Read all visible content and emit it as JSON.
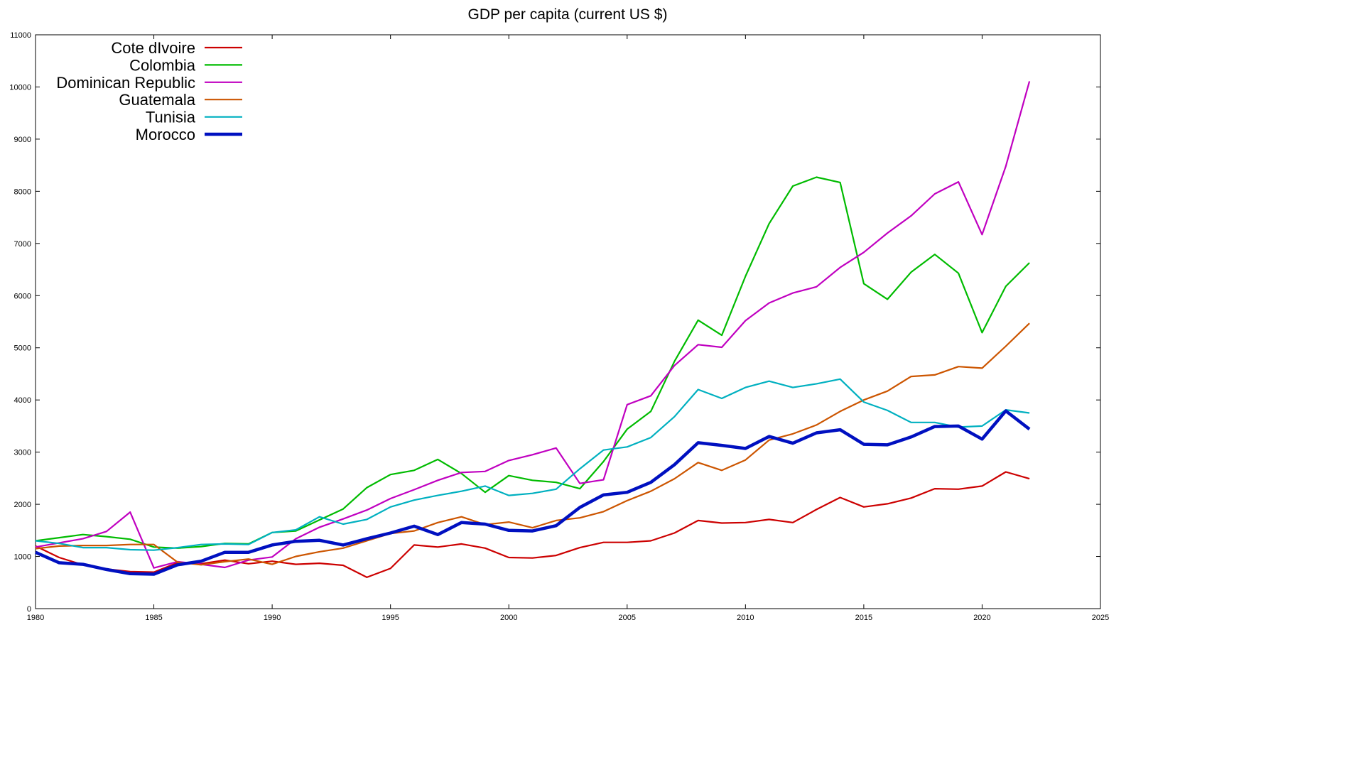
{
  "chart_data": {
    "type": "line",
    "title": "GDP per capita (current US $)",
    "xlabel": "",
    "ylabel": "",
    "xlim": [
      1980,
      2025
    ],
    "ylim": [
      0,
      11000
    ],
    "x_ticks": [
      1980,
      1985,
      1990,
      1995,
      2000,
      2005,
      2010,
      2015,
      2020,
      2025
    ],
    "y_ticks": [
      0,
      1000,
      2000,
      3000,
      4000,
      5000,
      6000,
      7000,
      8000,
      9000,
      10000,
      11000
    ],
    "grid": false,
    "legend_position": "top-left",
    "x": [
      1980,
      1981,
      1982,
      1983,
      1984,
      1985,
      1986,
      1987,
      1988,
      1989,
      1990,
      1991,
      1992,
      1993,
      1994,
      1995,
      1996,
      1997,
      1998,
      1999,
      2000,
      2001,
      2002,
      2003,
      2004,
      2005,
      2006,
      2007,
      2008,
      2009,
      2010,
      2011,
      2012,
      2013,
      2014,
      2015,
      2016,
      2017,
      2018,
      2019,
      2020,
      2021,
      2022
    ],
    "series": [
      {
        "name": "Cote dIvoire",
        "color": "#cc0000",
        "values": [
          1200,
          980,
          840,
          760,
          710,
          700,
          880,
          860,
          930,
          860,
          910,
          850,
          870,
          830,
          600,
          770,
          1220,
          1180,
          1240,
          1160,
          980,
          970,
          1020,
          1170,
          1270,
          1270,
          1300,
          1450,
          1690,
          1640,
          1650,
          1710,
          1650,
          1900,
          2130,
          1950,
          2010,
          2120,
          2300,
          2290,
          2350,
          2620,
          2490
        ]
      },
      {
        "name": "Colombia",
        "color": "#00bb00",
        "values": [
          1300,
          1360,
          1420,
          1380,
          1330,
          1180,
          1160,
          1190,
          1250,
          1240,
          1460,
          1490,
          1700,
          1910,
          2320,
          2570,
          2650,
          2860,
          2590,
          2230,
          2550,
          2460,
          2420,
          2300,
          2820,
          3440,
          3780,
          4740,
          5530,
          5240,
          6370,
          7380,
          8100,
          8270,
          8170,
          6230,
          5930,
          6450,
          6790,
          6430,
          5290,
          6180,
          6630
        ]
      },
      {
        "name": "Dominican Republic",
        "color": "#c000c0",
        "values": [
          1180,
          1260,
          1340,
          1480,
          1850,
          780,
          900,
          850,
          790,
          930,
          990,
          1340,
          1560,
          1720,
          1890,
          2110,
          2280,
          2460,
          2610,
          2630,
          2840,
          2950,
          3080,
          2400,
          2470,
          3910,
          4080,
          4660,
          5060,
          5010,
          5520,
          5860,
          6050,
          6170,
          6540,
          6830,
          7200,
          7530,
          7950,
          8180,
          7170,
          8480,
          10110
        ]
      },
      {
        "name": "Guatemala",
        "color": "#cc5500",
        "values": [
          1150,
          1200,
          1210,
          1210,
          1230,
          1230,
          890,
          840,
          900,
          950,
          850,
          1000,
          1090,
          1160,
          1300,
          1440,
          1490,
          1650,
          1760,
          1610,
          1660,
          1550,
          1690,
          1740,
          1860,
          2070,
          2250,
          2490,
          2800,
          2650,
          2850,
          3230,
          3350,
          3520,
          3780,
          4000,
          4170,
          4450,
          4480,
          4640,
          4610,
          5030,
          5470
        ]
      },
      {
        "name": "Tunisia",
        "color": "#00b0c0",
        "values": [
          1300,
          1250,
          1170,
          1170,
          1130,
          1120,
          1170,
          1230,
          1240,
          1230,
          1460,
          1510,
          1760,
          1620,
          1710,
          1950,
          2080,
          2170,
          2250,
          2350,
          2170,
          2210,
          2290,
          2680,
          3040,
          3100,
          3280,
          3680,
          4200,
          4030,
          4240,
          4360,
          4240,
          4310,
          4400,
          3960,
          3800,
          3570,
          3570,
          3480,
          3500,
          3810,
          3750
        ]
      },
      {
        "name": "Morocco",
        "color": "#0010c0",
        "thick": true,
        "values": [
          1080,
          880,
          850,
          750,
          670,
          660,
          840,
          910,
          1080,
          1080,
          1220,
          1290,
          1310,
          1220,
          1340,
          1450,
          1580,
          1420,
          1650,
          1620,
          1500,
          1490,
          1590,
          1940,
          2180,
          2230,
          2420,
          2760,
          3180,
          3130,
          3070,
          3300,
          3170,
          3370,
          3430,
          3150,
          3140,
          3290,
          3490,
          3500,
          3250,
          3790,
          3440
        ]
      }
    ]
  }
}
